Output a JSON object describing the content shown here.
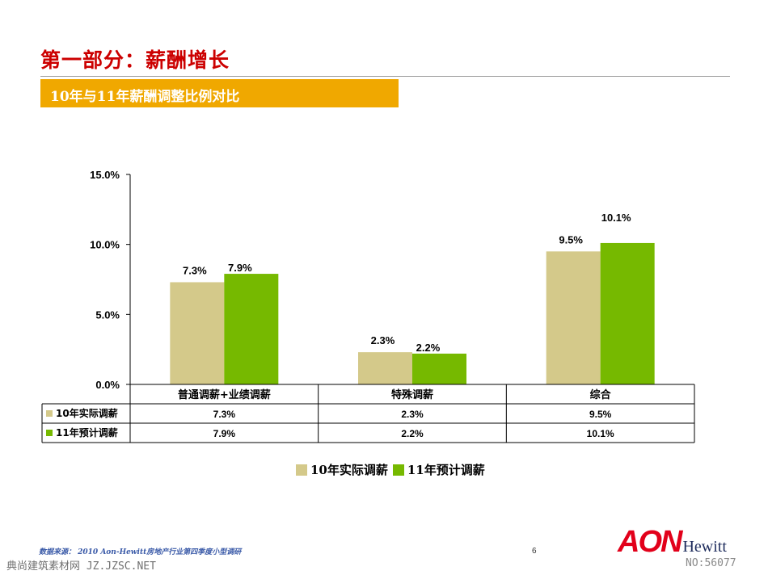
{
  "header": {
    "title": "第一部分：薪酬增长",
    "subtitle": "10年与11年薪酬调整比例对比"
  },
  "colors": {
    "series_2010": "#d4c98a",
    "series_2011": "#76b900",
    "title_red": "#cc0000",
    "subtitle_bar": "#f0a800"
  },
  "chart_data": {
    "type": "bar",
    "title": "",
    "xlabel": "",
    "ylabel": "",
    "categories": [
      "普通调薪+业绩调薪",
      "特殊调薪",
      "综合"
    ],
    "series": [
      {
        "name": "10年实际调薪",
        "values": [
          7.3,
          2.3,
          9.5
        ],
        "labels": [
          "7.3%",
          "2.3%",
          "9.5%"
        ]
      },
      {
        "name": "11年预计调薪",
        "values": [
          7.9,
          2.2,
          10.1
        ],
        "labels": [
          "7.9%",
          "2.2%",
          "10.1%"
        ]
      }
    ],
    "ylim": [
      0,
      15
    ],
    "y_ticks": [
      0,
      5,
      10,
      15
    ],
    "y_tick_labels": [
      "0.0%",
      "5.0%",
      "10.0%",
      "15.0%"
    ],
    "grid": false,
    "legend_position": "bottom",
    "data_table": true
  },
  "legend": {
    "items": [
      "10年实际调薪",
      "11年预计调薪"
    ]
  },
  "footer": {
    "source": "数据来源：  2010 Aon-Hewitt房地产行业第四季度小型调研",
    "page_number": "6",
    "watermark": "典尚建筑素材网 JZ.JZSC.NET",
    "watermark_no": "NO:56077",
    "logo_primary": "AON",
    "logo_secondary": "Hewitt"
  }
}
